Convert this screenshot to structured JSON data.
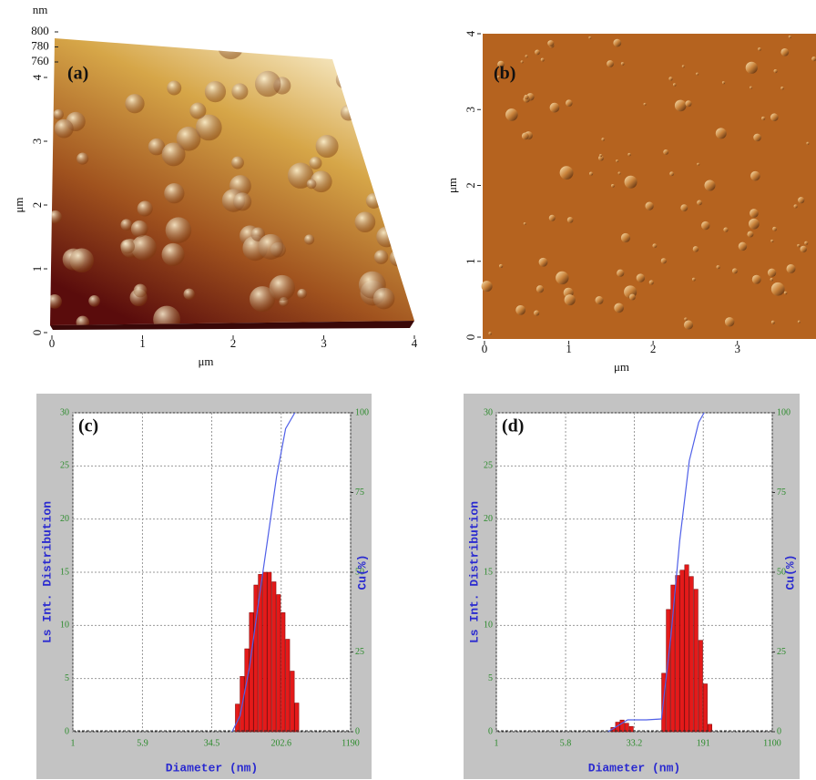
{
  "chart_data": [
    {
      "type": "surface",
      "title": "(a)",
      "xlabel": "μm",
      "ylabel": "μm",
      "zlabel": "nm",
      "xlim": [
        0,
        4
      ],
      "xticks": [
        0,
        1,
        2,
        3,
        4
      ],
      "ylim": [
        0,
        4
      ],
      "yticks": [
        0,
        1,
        2,
        3,
        4
      ],
      "zlim": [
        760,
        800
      ],
      "zticks": [
        760,
        780,
        800
      ]
    },
    {
      "type": "image",
      "title": "(b)",
      "xlabel": "μm",
      "ylabel": "μm",
      "xlim": [
        0,
        3.9
      ],
      "xticks": [
        0,
        1,
        2,
        3
      ],
      "ylim": [
        0,
        4
      ],
      "yticks": [
        0,
        1,
        2,
        3,
        4
      ]
    },
    {
      "type": "histogram",
      "title": "(c)",
      "xlabel": "Diameter (nm)",
      "ylabel": "Ls Int. Distribution",
      "y2label": "Cu(%)",
      "xscale": "log",
      "xlim": [
        1,
        1190
      ],
      "xticks": [
        1,
        5.9,
        34.5,
        202.6,
        1190
      ],
      "ylim": [
        0,
        30
      ],
      "yticks": [
        0,
        5,
        10,
        15,
        20,
        25,
        30
      ],
      "y2lim": [
        0,
        100
      ],
      "y2ticks": [
        0,
        25,
        50,
        75,
        100
      ],
      "grid": true,
      "bins": [
        63,
        71,
        80,
        90,
        101,
        113,
        127,
        143,
        160,
        180,
        202,
        227,
        255,
        287,
        322
      ],
      "values": [
        2.6,
        5.2,
        7.8,
        11.2,
        13.8,
        14.8,
        15,
        15,
        14.1,
        12.9,
        11.2,
        8.7,
        5.7,
        2.7
      ],
      "color": "#e41a1a",
      "cumulative": {
        "axis": "y2",
        "color": "#5060e8",
        "x": [
          58,
          71,
          90,
          113,
          143,
          180,
          227,
          287
        ],
        "values": [
          0,
          5,
          20,
          40,
          60,
          80,
          95,
          100
        ]
      }
    },
    {
      "type": "histogram",
      "title": "(d)",
      "xlabel": "Diameter (nm)",
      "ylabel": "Ls Int. Distribution",
      "y2label": "Cu(%)",
      "xscale": "log",
      "xlim": [
        1,
        1100
      ],
      "xticks": [
        1,
        5.8,
        33.2,
        191,
        1100
      ],
      "ylim": [
        0,
        30
      ],
      "yticks": [
        0,
        5,
        10,
        15,
        20,
        25,
        30
      ],
      "y2lim": [
        0,
        100
      ],
      "y2ticks": [
        0,
        25,
        50,
        75,
        100
      ],
      "grid": true,
      "bins": [
        18.3,
        20.6,
        23.1,
        26.0,
        29.2,
        32.8,
        36.9,
        41.5,
        46.7,
        52.5,
        59.0,
        66.4,
        74.6,
        83.9,
        94.2,
        105.9,
        119.1,
        133.9,
        150.7,
        169.4,
        190.5,
        214.3,
        241
      ],
      "values": [
        0.4,
        0.9,
        1.1,
        0.8,
        0.5,
        0,
        0,
        0,
        0,
        0,
        0,
        5.5,
        11.5,
        13.8,
        14.7,
        15.2,
        15.7,
        14.6,
        13.4,
        8.6,
        4.5,
        0.7
      ],
      "color": "#e41a1a",
      "cumulative": {
        "axis": "y2",
        "color": "#5060e8",
        "x": [
          17,
          28,
          45,
          66,
          84,
          105,
          134,
          170,
          195
        ],
        "values": [
          0,
          3.7,
          3.7,
          4,
          30,
          60,
          85,
          97,
          100
        ]
      }
    }
  ]
}
